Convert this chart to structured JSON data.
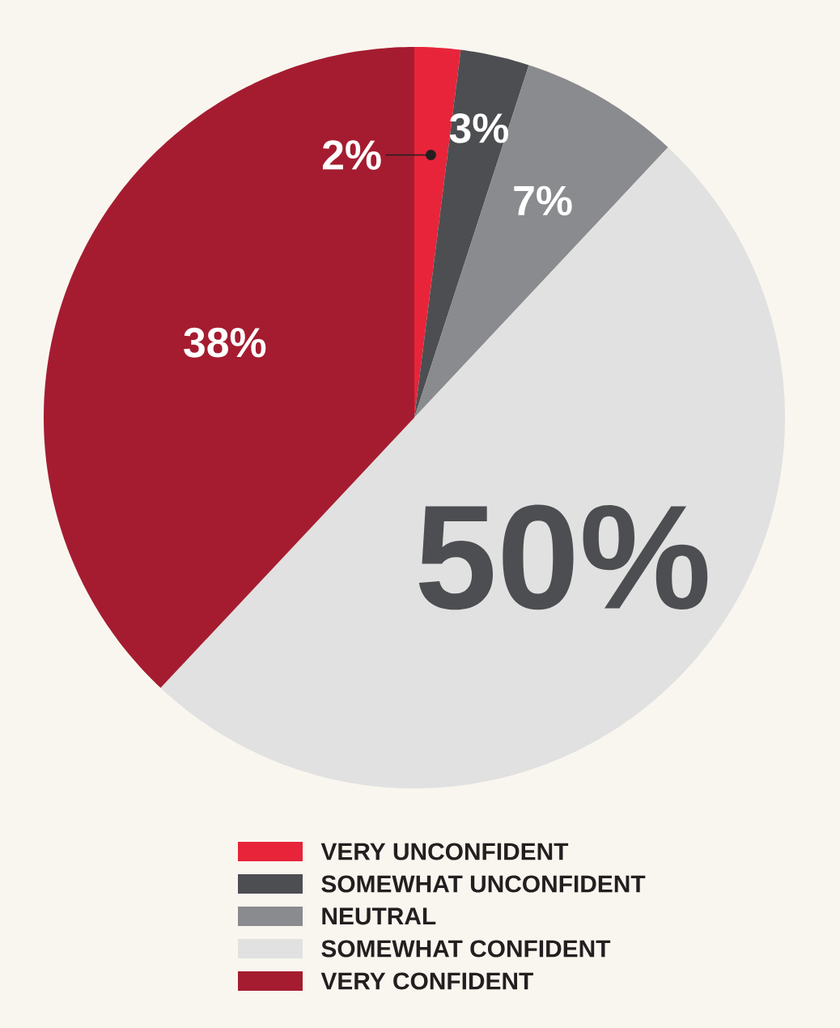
{
  "chart_data": {
    "type": "pie",
    "categories": [
      "VERY UNCONFIDENT",
      "SOMEWHAT UNCONFIDENT",
      "NEUTRAL",
      "SOMEWHAT CONFIDENT",
      "VERY CONFIDENT"
    ],
    "values": [
      2,
      3,
      7,
      50,
      38
    ],
    "colors": [
      "#e8243a",
      "#4d4e52",
      "#8a8b8e",
      "#e1e1e1",
      "#a51c30"
    ],
    "value_labels": [
      "2%",
      "3%",
      "7%",
      "50%",
      "38%"
    ],
    "legend": "bottom"
  }
}
